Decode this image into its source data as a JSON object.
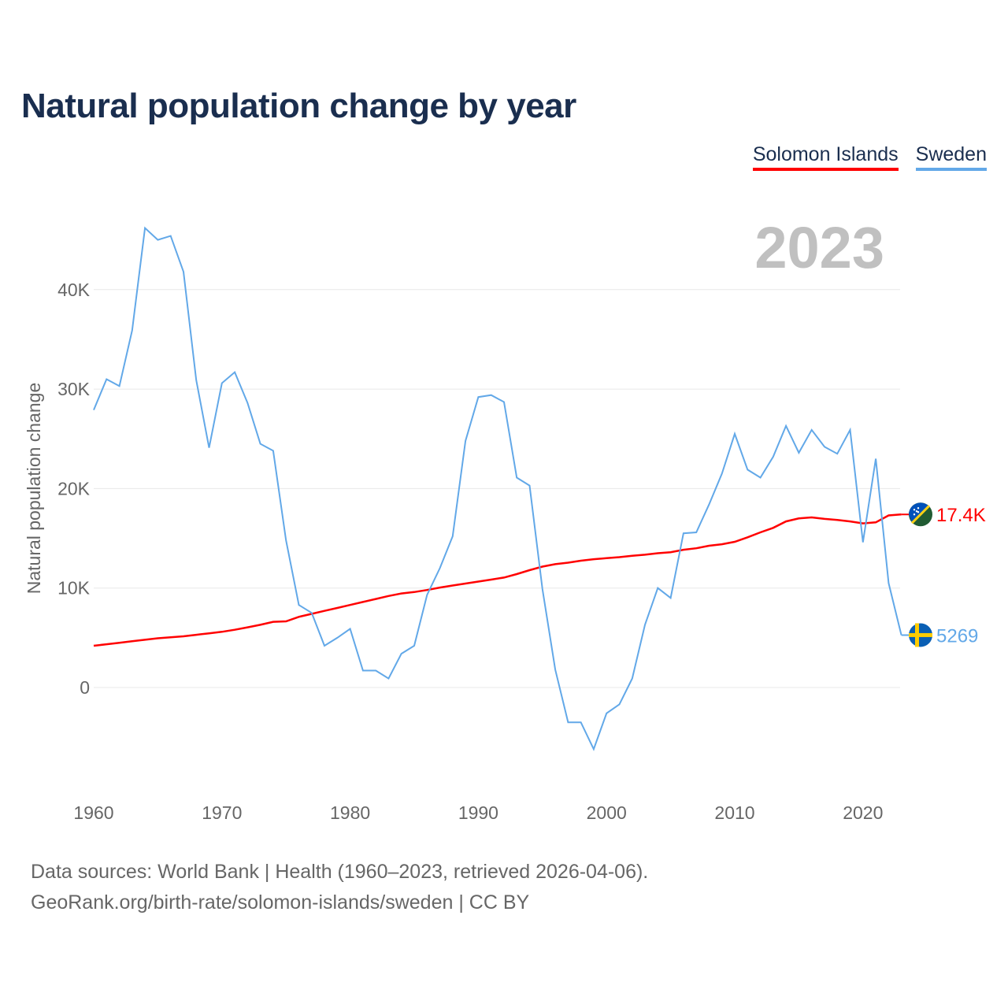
{
  "title": "Natural population change by year",
  "legend": [
    {
      "name": "Solomon Islands",
      "color": "#ff0000"
    },
    {
      "name": "Sweden",
      "color": "#62a8e8"
    }
  ],
  "year_label": "2023",
  "source_line1": "Data sources: World Bank | Health (1960–2023, retrieved 2026-04-06).",
  "source_line2": "GeoRank.org/birth-rate/solomon-islands/sweden | CC BY",
  "chart_data": {
    "type": "line",
    "title": "Natural population change by year",
    "xlabel": "",
    "ylabel": "Natural population change",
    "xlim": [
      1960,
      2023
    ],
    "ylim": [
      -10000,
      46000
    ],
    "grid": true,
    "legend_position": "top-right",
    "x_ticks": [
      1960,
      1970,
      1980,
      1990,
      2000,
      2010,
      2020
    ],
    "y_ticks": [
      {
        "v": 0,
        "label": "0"
      },
      {
        "v": 10000,
        "label": "10K"
      },
      {
        "v": 20000,
        "label": "20K"
      },
      {
        "v": 30000,
        "label": "30K"
      },
      {
        "v": 40000,
        "label": "40K"
      }
    ],
    "x_start": 1960,
    "series": [
      {
        "name": "Solomon Islands",
        "color": "#ff0000",
        "end_label": "17.4K",
        "flag": "solomon-islands",
        "values": [
          4200,
          4350,
          4500,
          4650,
          4800,
          4950,
          5050,
          5150,
          5300,
          5450,
          5600,
          5800,
          6050,
          6300,
          6600,
          6650,
          7100,
          7400,
          7700,
          8000,
          8300,
          8600,
          8900,
          9200,
          9450,
          9600,
          9800,
          10050,
          10250,
          10450,
          10650,
          10850,
          11050,
          11400,
          11800,
          12150,
          12400,
          12550,
          12750,
          12900,
          13000,
          13100,
          13250,
          13350,
          13500,
          13600,
          13850,
          14000,
          14250,
          14400,
          14650,
          15100,
          15600,
          16050,
          16700,
          17000,
          17100,
          16950,
          16850,
          16700,
          16500,
          16600,
          17300,
          17400
        ]
      },
      {
        "name": "Sweden",
        "color": "#62a8e8",
        "end_label": "5269",
        "flag": "sweden",
        "values": [
          27900,
          31000,
          30300,
          35900,
          46200,
          45000,
          45400,
          41800,
          30900,
          24100,
          30600,
          31700,
          28600,
          24500,
          23800,
          14800,
          8300,
          7500,
          4200,
          5000,
          5900,
          1700,
          1700,
          900,
          3400,
          4200,
          9300,
          12000,
          15200,
          24800,
          29200,
          29400,
          28700,
          21100,
          20300,
          9900,
          1800,
          -3500,
          -3500,
          -6200,
          -2600,
          -1700,
          900,
          6300,
          10000,
          9000,
          15500,
          15600,
          18400,
          21500,
          25500,
          21900,
          21100,
          23200,
          26300,
          23600,
          25900,
          24200,
          23500,
          25900,
          14600,
          23000,
          10500,
          5269
        ]
      }
    ]
  }
}
